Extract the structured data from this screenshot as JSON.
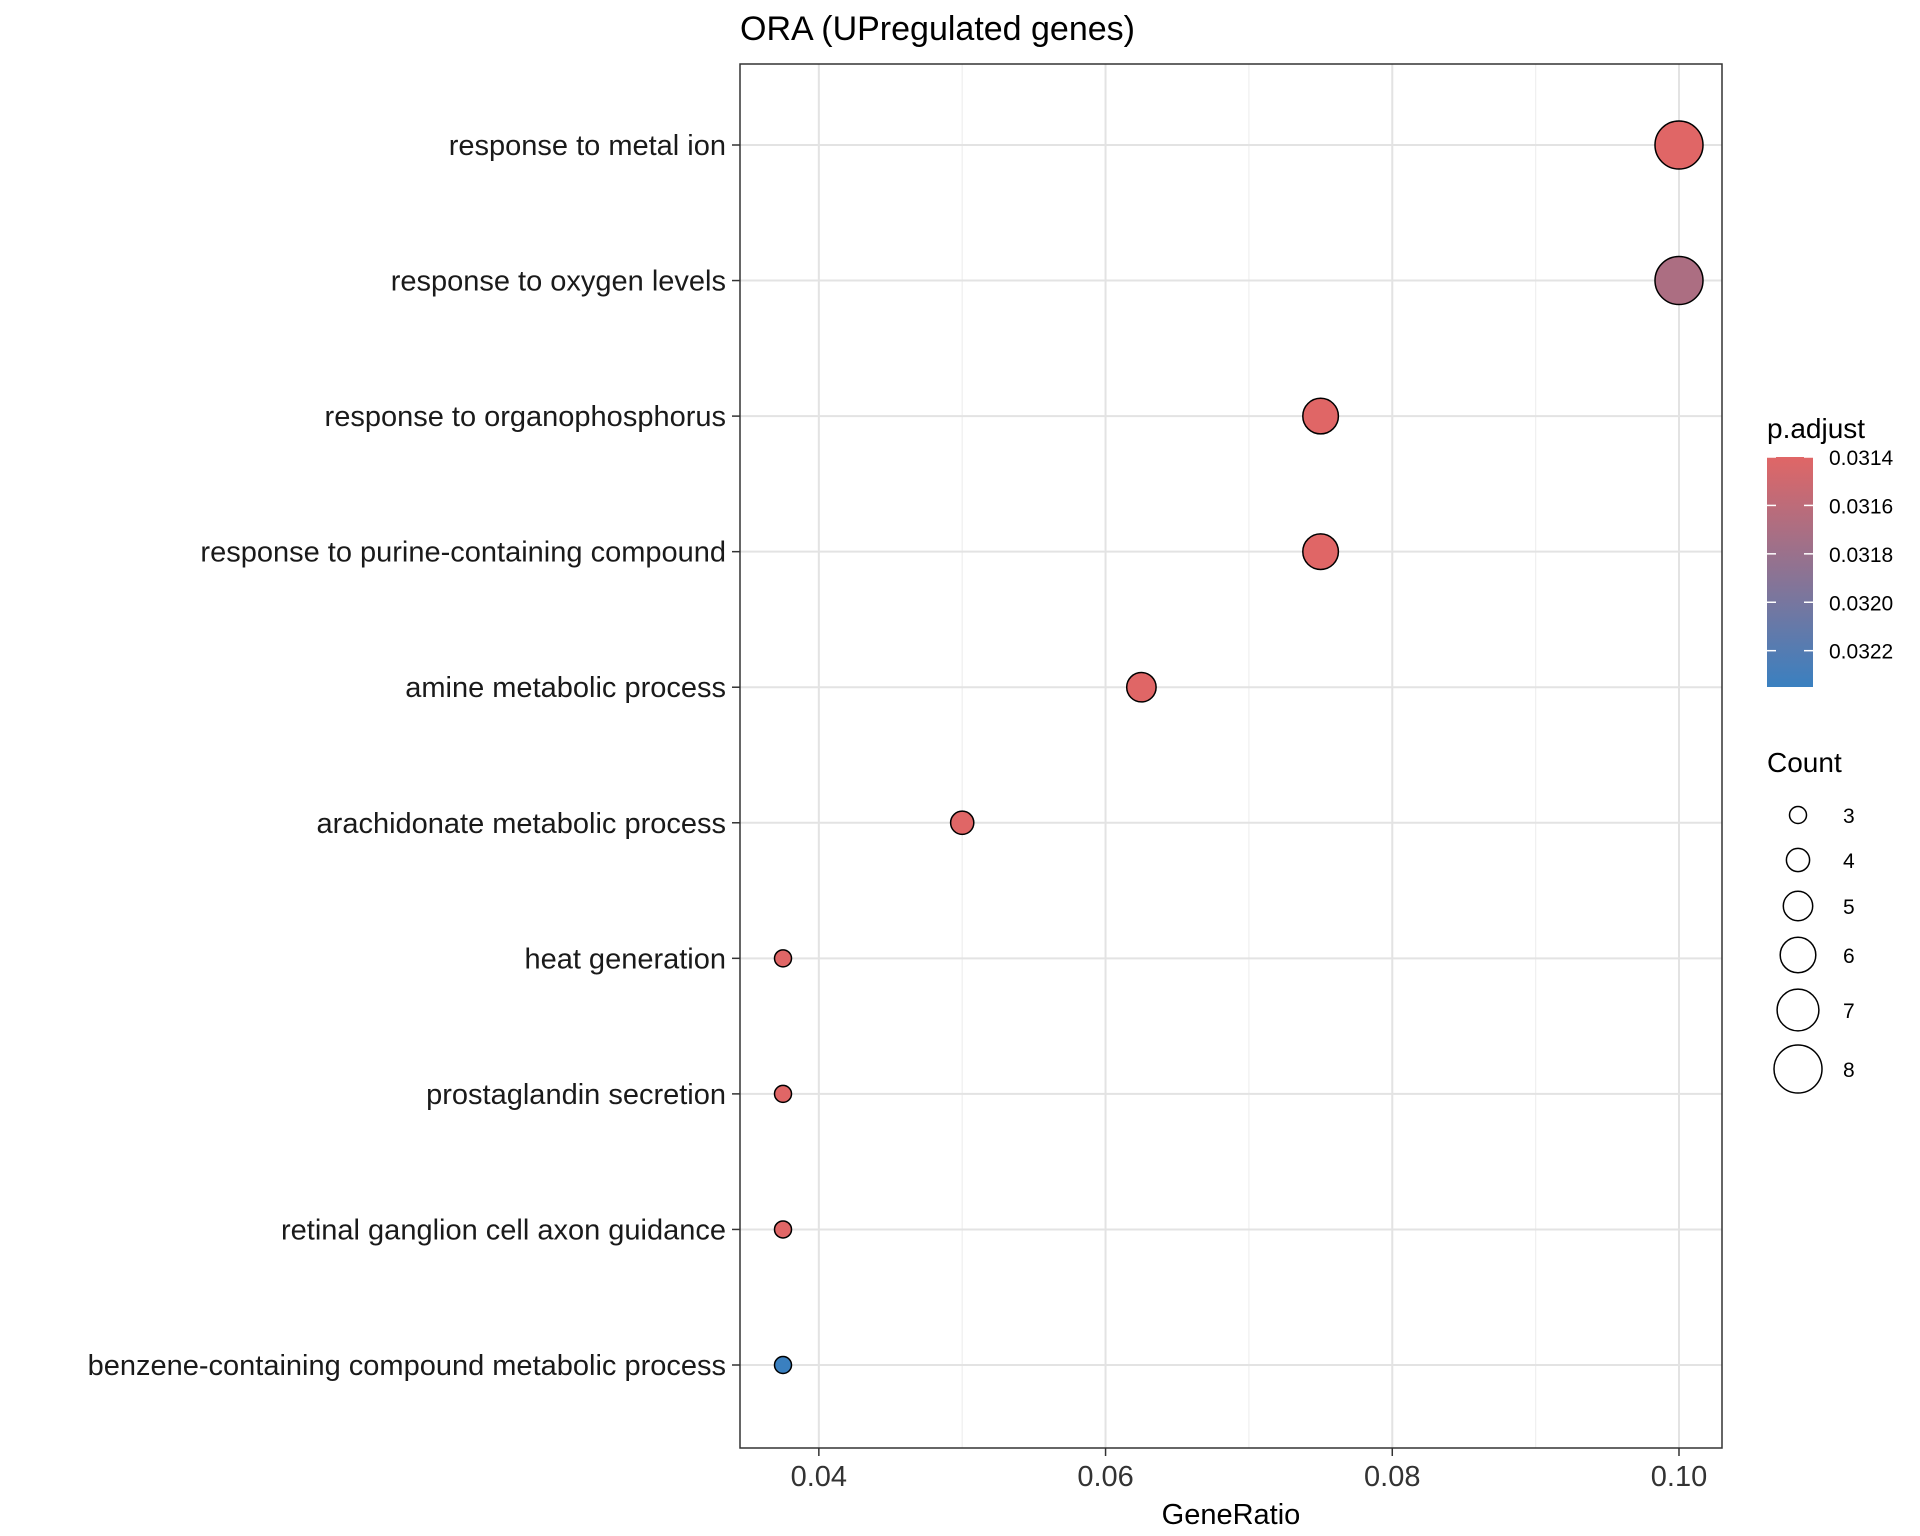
{
  "chart_data": {
    "type": "scatter",
    "title": "ORA (UPregulated genes)",
    "xlabel": "GeneRatio",
    "ylabel": "",
    "xlim": [
      0.0345,
      0.103
    ],
    "x_ticks": [
      "0.04",
      "0.06",
      "0.08",
      "0.10"
    ],
    "x_tick_values": [
      0.04,
      0.06,
      0.08,
      0.1
    ],
    "grid": true,
    "points": [
      {
        "category": "response to metal ion",
        "gene_ratio": 0.1,
        "count": 8,
        "p_adjust": 0.0314
      },
      {
        "category": "response to oxygen levels",
        "gene_ratio": 0.1,
        "count": 8,
        "p_adjust": 0.0317
      },
      {
        "category": "response to organophosphorus",
        "gene_ratio": 0.075,
        "count": 6,
        "p_adjust": 0.0314
      },
      {
        "category": "response to purine-containing compound",
        "gene_ratio": 0.075,
        "count": 6,
        "p_adjust": 0.0314
      },
      {
        "category": "amine metabolic process",
        "gene_ratio": 0.0625,
        "count": 5,
        "p_adjust": 0.0314
      },
      {
        "category": "arachidonate metabolic process",
        "gene_ratio": 0.05,
        "count": 4,
        "p_adjust": 0.0314
      },
      {
        "category": "heat generation",
        "gene_ratio": 0.0375,
        "count": 3,
        "p_adjust": 0.0314
      },
      {
        "category": "prostaglandin secretion",
        "gene_ratio": 0.0375,
        "count": 3,
        "p_adjust": 0.0314
      },
      {
        "category": "retinal ganglion cell axon guidance",
        "gene_ratio": 0.0375,
        "count": 3,
        "p_adjust": 0.0314
      },
      {
        "category": "benzene-containing compound metabolic process",
        "gene_ratio": 0.0375,
        "count": 3,
        "p_adjust": 0.03235
      }
    ],
    "color_legend": {
      "title": "p.adjust",
      "range": [
        0.0314,
        0.03235
      ],
      "ticks": [
        "0.0314",
        "0.0316",
        "0.0318",
        "0.0320",
        "0.0322"
      ],
      "tick_values": [
        0.0314,
        0.0316,
        0.0318,
        0.032,
        0.0322
      ],
      "low_color": "#e06666",
      "high_color": "#3a80c0"
    },
    "size_legend": {
      "title": "Count",
      "values": [
        3,
        4,
        5,
        6,
        7,
        8
      ]
    }
  }
}
